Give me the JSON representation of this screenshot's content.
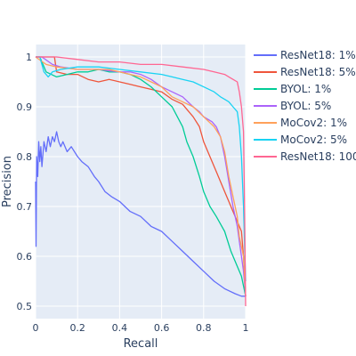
{
  "chart_data": {
    "type": "line",
    "title": "",
    "xlabel": "Recall",
    "ylabel": "Precision",
    "xlim": [
      0,
      1
    ],
    "ylim": [
      0.475,
      1.025
    ],
    "x_ticks": [
      0,
      0.2,
      0.4,
      0.6,
      0.8,
      1
    ],
    "x_tick_labels": [
      "0",
      "0.2",
      "0.4",
      "0.6",
      "0.8",
      "1"
    ],
    "y_ticks": [
      0.5,
      0.6,
      0.7,
      0.8,
      0.9,
      1
    ],
    "y_tick_labels": [
      "0.5",
      "0.6",
      "0.7",
      "0.8",
      "0.9",
      "1"
    ],
    "grid": true,
    "legend_position": "right",
    "background": "#e5ecf6",
    "series": [
      {
        "name": "ResNet18: 1%",
        "color": "#636efa",
        "points": [
          [
            0,
            0.75
          ],
          [
            0.002,
            0.62
          ],
          [
            0.005,
            0.8
          ],
          [
            0.01,
            0.76
          ],
          [
            0.015,
            0.83
          ],
          [
            0.02,
            0.79
          ],
          [
            0.025,
            0.82
          ],
          [
            0.03,
            0.78
          ],
          [
            0.04,
            0.83
          ],
          [
            0.05,
            0.81
          ],
          [
            0.06,
            0.84
          ],
          [
            0.07,
            0.82
          ],
          [
            0.08,
            0.84
          ],
          [
            0.09,
            0.83
          ],
          [
            0.1,
            0.85
          ],
          [
            0.11,
            0.83
          ],
          [
            0.12,
            0.82
          ],
          [
            0.13,
            0.83
          ],
          [
            0.15,
            0.81
          ],
          [
            0.17,
            0.82
          ],
          [
            0.2,
            0.8
          ],
          [
            0.22,
            0.79
          ],
          [
            0.25,
            0.78
          ],
          [
            0.28,
            0.76
          ],
          [
            0.3,
            0.75
          ],
          [
            0.33,
            0.73
          ],
          [
            0.36,
            0.72
          ],
          [
            0.4,
            0.71
          ],
          [
            0.45,
            0.69
          ],
          [
            0.5,
            0.68
          ],
          [
            0.55,
            0.66
          ],
          [
            0.6,
            0.65
          ],
          [
            0.65,
            0.63
          ],
          [
            0.7,
            0.61
          ],
          [
            0.75,
            0.59
          ],
          [
            0.8,
            0.57
          ],
          [
            0.85,
            0.55
          ],
          [
            0.9,
            0.535
          ],
          [
            0.95,
            0.525
          ],
          [
            0.98,
            0.52
          ],
          [
            1,
            0.52
          ]
        ]
      },
      {
        "name": "ResNet18: 5%",
        "color": "#ef553b",
        "points": [
          [
            0,
            1
          ],
          [
            0.05,
            1
          ],
          [
            0.09,
            1
          ],
          [
            0.1,
            0.97
          ],
          [
            0.15,
            0.965
          ],
          [
            0.2,
            0.965
          ],
          [
            0.25,
            0.955
          ],
          [
            0.3,
            0.95
          ],
          [
            0.35,
            0.955
          ],
          [
            0.4,
            0.95
          ],
          [
            0.45,
            0.945
          ],
          [
            0.5,
            0.94
          ],
          [
            0.55,
            0.935
          ],
          [
            0.6,
            0.93
          ],
          [
            0.65,
            0.915
          ],
          [
            0.7,
            0.905
          ],
          [
            0.72,
            0.895
          ],
          [
            0.75,
            0.88
          ],
          [
            0.78,
            0.86
          ],
          [
            0.8,
            0.83
          ],
          [
            0.83,
            0.8
          ],
          [
            0.86,
            0.77
          ],
          [
            0.88,
            0.75
          ],
          [
            0.9,
            0.73
          ],
          [
            0.92,
            0.71
          ],
          [
            0.94,
            0.69
          ],
          [
            0.96,
            0.67
          ],
          [
            0.98,
            0.65
          ],
          [
            0.99,
            0.6
          ],
          [
            1,
            0.52
          ]
        ]
      },
      {
        "name": "BYOL: 1%",
        "color": "#00cc96",
        "points": [
          [
            0,
            1
          ],
          [
            0.02,
            1
          ],
          [
            0.05,
            0.97
          ],
          [
            0.1,
            0.96
          ],
          [
            0.15,
            0.965
          ],
          [
            0.2,
            0.97
          ],
          [
            0.25,
            0.97
          ],
          [
            0.3,
            0.975
          ],
          [
            0.35,
            0.97
          ],
          [
            0.4,
            0.97
          ],
          [
            0.45,
            0.965
          ],
          [
            0.5,
            0.955
          ],
          [
            0.55,
            0.94
          ],
          [
            0.6,
            0.92
          ],
          [
            0.65,
            0.9
          ],
          [
            0.7,
            0.86
          ],
          [
            0.72,
            0.83
          ],
          [
            0.75,
            0.8
          ],
          [
            0.78,
            0.76
          ],
          [
            0.8,
            0.73
          ],
          [
            0.83,
            0.7
          ],
          [
            0.86,
            0.68
          ],
          [
            0.9,
            0.65
          ],
          [
            0.93,
            0.61
          ],
          [
            0.96,
            0.58
          ],
          [
            0.98,
            0.56
          ],
          [
            1,
            0.52
          ]
        ]
      },
      {
        "name": "BYOL: 5%",
        "color": "#ab63fa",
        "points": [
          [
            0,
            1
          ],
          [
            0.03,
            1
          ],
          [
            0.08,
            0.985
          ],
          [
            0.12,
            0.98
          ],
          [
            0.2,
            0.975
          ],
          [
            0.3,
            0.975
          ],
          [
            0.4,
            0.97
          ],
          [
            0.45,
            0.97
          ],
          [
            0.5,
            0.965
          ],
          [
            0.55,
            0.955
          ],
          [
            0.6,
            0.94
          ],
          [
            0.65,
            0.93
          ],
          [
            0.7,
            0.92
          ],
          [
            0.75,
            0.9
          ],
          [
            0.78,
            0.89
          ],
          [
            0.8,
            0.88
          ],
          [
            0.84,
            0.87
          ],
          [
            0.86,
            0.86
          ],
          [
            0.88,
            0.84
          ],
          [
            0.9,
            0.8
          ],
          [
            0.92,
            0.75
          ],
          [
            0.94,
            0.7
          ],
          [
            0.96,
            0.66
          ],
          [
            0.97,
            0.63
          ],
          [
            0.98,
            0.6
          ],
          [
            0.99,
            0.57
          ],
          [
            1,
            0.52
          ]
        ]
      },
      {
        "name": "MoCov2: 1%",
        "color": "#ffa15a",
        "points": [
          [
            0,
            1
          ],
          [
            0.05,
            0.985
          ],
          [
            0.1,
            0.98
          ],
          [
            0.2,
            0.975
          ],
          [
            0.3,
            0.975
          ],
          [
            0.35,
            0.975
          ],
          [
            0.4,
            0.97
          ],
          [
            0.45,
            0.965
          ],
          [
            0.5,
            0.96
          ],
          [
            0.55,
            0.95
          ],
          [
            0.6,
            0.94
          ],
          [
            0.65,
            0.92
          ],
          [
            0.7,
            0.91
          ],
          [
            0.75,
            0.9
          ],
          [
            0.8,
            0.88
          ],
          [
            0.85,
            0.86
          ],
          [
            0.88,
            0.84
          ],
          [
            0.9,
            0.81
          ],
          [
            0.92,
            0.76
          ],
          [
            0.94,
            0.72
          ],
          [
            0.96,
            0.68
          ],
          [
            0.97,
            0.64
          ],
          [
            0.99,
            0.6
          ],
          [
            1,
            0.52
          ]
        ]
      },
      {
        "name": "MoCov2: 5%",
        "color": "#19d3f3",
        "points": [
          [
            0,
            1
          ],
          [
            0.02,
            1
          ],
          [
            0.04,
            0.97
          ],
          [
            0.06,
            0.96
          ],
          [
            0.08,
            0.97
          ],
          [
            0.12,
            0.975
          ],
          [
            0.2,
            0.98
          ],
          [
            0.3,
            0.98
          ],
          [
            0.4,
            0.975
          ],
          [
            0.5,
            0.97
          ],
          [
            0.6,
            0.965
          ],
          [
            0.65,
            0.96
          ],
          [
            0.7,
            0.955
          ],
          [
            0.75,
            0.95
          ],
          [
            0.8,
            0.94
          ],
          [
            0.85,
            0.93
          ],
          [
            0.88,
            0.92
          ],
          [
            0.9,
            0.915
          ],
          [
            0.92,
            0.91
          ],
          [
            0.94,
            0.9
          ],
          [
            0.96,
            0.89
          ],
          [
            0.97,
            0.86
          ],
          [
            0.98,
            0.8
          ],
          [
            0.99,
            0.7
          ],
          [
            1,
            0.55
          ]
        ]
      },
      {
        "name": "ResNet18: 100%",
        "color": "#ff6692",
        "points": [
          [
            0,
            1
          ],
          [
            0.1,
            1
          ],
          [
            0.2,
            0.995
          ],
          [
            0.3,
            0.99
          ],
          [
            0.4,
            0.99
          ],
          [
            0.5,
            0.985
          ],
          [
            0.6,
            0.985
          ],
          [
            0.7,
            0.98
          ],
          [
            0.8,
            0.975
          ],
          [
            0.85,
            0.97
          ],
          [
            0.9,
            0.965
          ],
          [
            0.92,
            0.96
          ],
          [
            0.94,
            0.955
          ],
          [
            0.96,
            0.95
          ],
          [
            0.97,
            0.93
          ],
          [
            0.98,
            0.9
          ],
          [
            0.99,
            0.85
          ],
          [
            0.995,
            0.7
          ],
          [
            1,
            0.5
          ]
        ]
      }
    ]
  }
}
